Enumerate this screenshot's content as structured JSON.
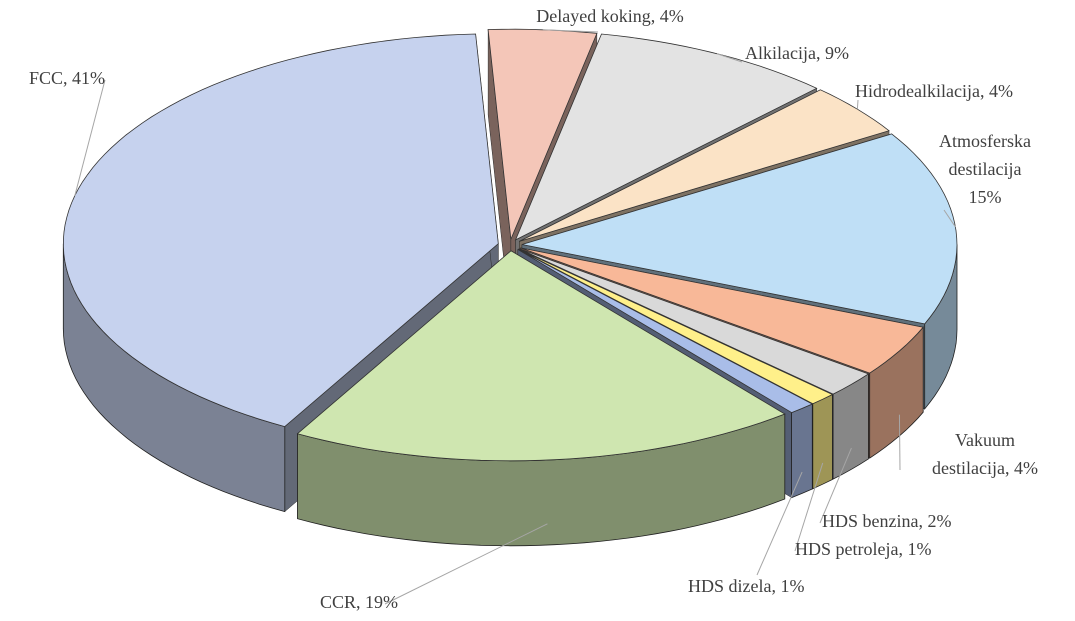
{
  "chart_data": {
    "type": "pie",
    "values": [
      4,
      9,
      4,
      15,
      4,
      2,
      1,
      1,
      19,
      41
    ],
    "value_labels": [
      [
        "Delayed koking, 4%"
      ],
      [
        "Alkilacija, 9%"
      ],
      [
        "Hidrodealkilacija, 4%"
      ],
      [
        "Atmosferska",
        "destilacija",
        "15%"
      ],
      [
        "Vakuum",
        "destilacija, 4%"
      ],
      [
        "HDS benzina, 2%"
      ],
      [
        "HDS petroleja, 1%"
      ],
      [
        "HDS dizela, 1%"
      ],
      [
        "CCR, 19%"
      ],
      [
        "FCC, 41%"
      ]
    ],
    "colors": [
      "#f4c6b8",
      "#e3e3e3",
      "#fbe3c6",
      "#bfdff6",
      "#f8b898",
      "#d9d9d9",
      "#fff08a",
      "#a9bde8",
      "#cfe6b0",
      "#c6d2ee"
    ]
  }
}
